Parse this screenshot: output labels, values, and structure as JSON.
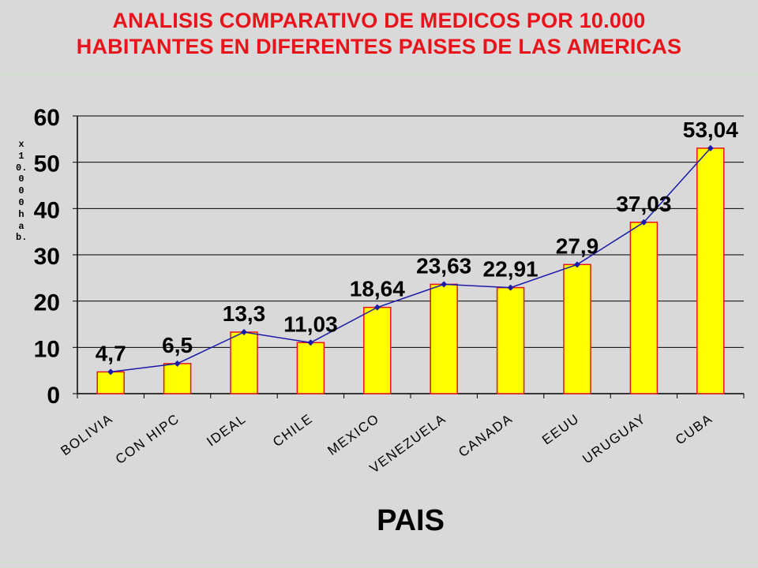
{
  "title_lines": [
    "ANALISIS COMPARATIVO DE MEDICOS POR 10.000",
    "HABITANTES EN DIFERENTES PAISES DE LAS AMERICAS"
  ],
  "colors": {
    "title": "#e8131b",
    "bar_fill": "#ffff00",
    "bar_edge": "#e8131b",
    "line": "#1a1aa8",
    "background": "#d9d9d9"
  },
  "chart_data": {
    "type": "bar",
    "title": "ANALISIS COMPARATIVO DE MEDICOS POR 10.000 HABITANTES EN DIFERENTES PAISES DE LAS AMERICAS",
    "xlabel": "PAIS",
    "ylabel": "x 10.000 hab.",
    "categories": [
      "BOLIVIA",
      "CON HIPC",
      "IDEAL",
      "CHILE",
      "MEXICO",
      "VENEZUELA",
      "CANADA",
      "EEUU",
      "URUGUAY",
      "CUBA"
    ],
    "values": [
      4.7,
      6.5,
      13.3,
      11.03,
      18.64,
      23.63,
      22.91,
      27.9,
      37.03,
      53.04
    ],
    "data_labels": [
      "4,7",
      "6,5",
      "13,3",
      "11,03",
      "18,64",
      "23,63",
      "22,91",
      "27,9",
      "37,03",
      "53,04"
    ],
    "line_overlay": true,
    "ylim": [
      0,
      60
    ],
    "yticks": [
      0,
      10,
      20,
      30,
      40,
      50,
      60
    ],
    "grid": true,
    "legend": "none"
  }
}
